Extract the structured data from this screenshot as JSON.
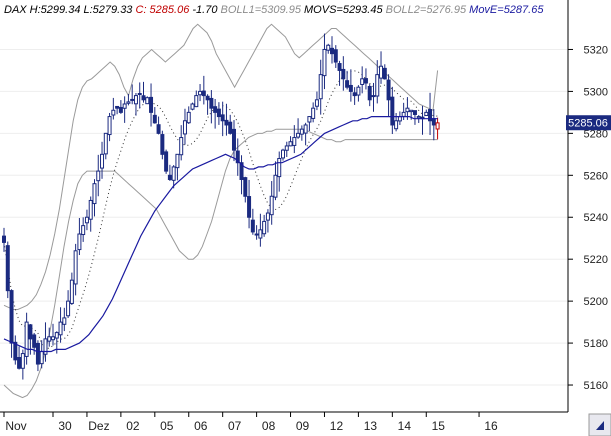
{
  "header": {
    "items": [
      {
        "text": "DAX H:5299.34 L:5279.33",
        "color": "#000000",
        "italic": true
      },
      {
        "text": "C: 5285.06",
        "color": "#c00000",
        "italic": true
      },
      {
        "text": "-1.70",
        "color": "#000000",
        "italic": true
      },
      {
        "text": "BOLL1=5309.95",
        "color": "#8c8c8c",
        "italic": true
      },
      {
        "text": "MOVS=5293.45",
        "color": "#000000",
        "italic": true
      },
      {
        "text": "BOLL2=5276.95",
        "color": "#8c8c8c",
        "italic": true
      },
      {
        "text": "MovE=5287.65",
        "color": "#1a1aa0",
        "italic": true
      }
    ]
  },
  "last_price_label": "5285.06",
  "colors": {
    "candle": "#1b2a80",
    "last_candle": "#c00000",
    "ema": "#1a1aa0",
    "boll": "#9a9a9a",
    "sma": "#333333",
    "price_tag_bg": "#1b2a80"
  },
  "chart_data": {
    "type": "candlestick",
    "y_ticks": [
      5160,
      5180,
      5200,
      5220,
      5240,
      5260,
      5280,
      5300,
      5320
    ],
    "ylim": [
      5150,
      5335
    ],
    "x_labels": [
      {
        "label": "Nov",
        "x": 0
      },
      {
        "label": "30",
        "x": 13
      },
      {
        "label": "Dez",
        "x": 22
      },
      {
        "label": "02",
        "x": 31
      },
      {
        "label": "05",
        "x": 40
      },
      {
        "label": "06",
        "x": 49
      },
      {
        "label": "07",
        "x": 58
      },
      {
        "label": "08",
        "x": 67
      },
      {
        "label": "09",
        "x": 76
      },
      {
        "label": "12",
        "x": 85
      },
      {
        "label": "13",
        "x": 94
      },
      {
        "label": "14",
        "x": 103
      },
      {
        "label": "15",
        "x": 112
      },
      {
        "label": "16",
        "x": 126
      }
    ],
    "x_range": [
      0,
      148
    ],
    "price": [
      5228,
      5205,
      5180,
      5172,
      5168,
      5175,
      5190,
      5182,
      5178,
      5170,
      5176,
      5182,
      5183,
      5183,
      5185,
      5190,
      5192,
      5200,
      5210,
      5224,
      5232,
      5236,
      5240,
      5248,
      5256,
      5262,
      5270,
      5280,
      5288,
      5291,
      5292,
      5290,
      5294,
      5295,
      5296,
      5298,
      5299,
      5296,
      5297,
      5290,
      5285,
      5280,
      5270,
      5262,
      5258,
      5264,
      5270,
      5278,
      5286,
      5290,
      5294,
      5298,
      5300,
      5298,
      5296,
      5292,
      5290,
      5288,
      5286,
      5284,
      5280,
      5272,
      5266,
      5258,
      5250,
      5240,
      5233,
      5232,
      5234,
      5238,
      5242,
      5250,
      5260,
      5268,
      5272,
      5274,
      5276,
      5278,
      5280,
      5282,
      5284,
      5288,
      5292,
      5296,
      5308,
      5320,
      5322,
      5318,
      5314,
      5310,
      5306,
      5302,
      5300,
      5298,
      5302,
      5306,
      5304,
      5296,
      5298,
      5308,
      5312,
      5306,
      5296,
      5284,
      5286,
      5288,
      5290,
      5292,
      5291,
      5289,
      5288,
      5287,
      5290,
      5286,
      5284,
      5285
    ],
    "ema_y": [
      5182,
      5181,
      5180,
      5179,
      5178,
      5177,
      5177,
      5176,
      5176,
      5176,
      5176,
      5177,
      5177,
      5177,
      5178,
      5179,
      5180,
      5182,
      5184,
      5187,
      5190,
      5193,
      5197,
      5201,
      5206,
      5211,
      5216,
      5221,
      5226,
      5231,
      5235,
      5239,
      5243,
      5246,
      5249,
      5252,
      5255,
      5257,
      5259,
      5261,
      5263,
      5264,
      5265,
      5266,
      5267,
      5268,
      5269,
      5270,
      5269,
      5268,
      5266,
      5264,
      5263,
      5263,
      5264,
      5264,
      5265,
      5265,
      5266,
      5266,
      5267,
      5268,
      5269,
      5270,
      5272,
      5274,
      5276,
      5278,
      5280,
      5281,
      5282,
      5283,
      5284,
      5285,
      5286,
      5286,
      5287,
      5287,
      5288,
      5288,
      5288,
      5288,
      5288,
      5288,
      5288,
      5288,
      5288,
      5287,
      5287,
      5287,
      5287,
      5287,
      5287
    ],
    "boll_upper": [
      5198,
      5197,
      5196,
      5196,
      5197,
      5198,
      5200,
      5203,
      5208,
      5214,
      5222,
      5232,
      5244,
      5258,
      5272,
      5286,
      5296,
      5302,
      5305,
      5306,
      5308,
      5310,
      5312,
      5314,
      5312,
      5308,
      5302,
      5298,
      5306,
      5312,
      5316,
      5318,
      5320,
      5318,
      5316,
      5314,
      5316,
      5318,
      5320,
      5322,
      5326,
      5330,
      5332,
      5330,
      5328,
      5324,
      5318,
      5314,
      5310,
      5306,
      5302,
      5306,
      5310,
      5314,
      5318,
      5322,
      5326,
      5330,
      5332,
      5330,
      5328,
      5326,
      5322,
      5318,
      5316,
      5318,
      5320,
      5322,
      5324,
      5326,
      5328,
      5330,
      5330,
      5328,
      5326,
      5324,
      5322,
      5320,
      5318,
      5316,
      5314,
      5312,
      5310,
      5308,
      5306,
      5304,
      5302,
      5300,
      5298,
      5296,
      5294,
      5293,
      5292,
      5291,
      5310
    ],
    "boll_lower": [
      5160,
      5158,
      5156,
      5155,
      5154,
      5155,
      5158,
      5162,
      5168,
      5176,
      5186,
      5198,
      5212,
      5226,
      5238,
      5248,
      5256,
      5260,
      5262,
      5262,
      5262,
      5262,
      5262,
      5262,
      5262,
      5260,
      5258,
      5256,
      5254,
      5252,
      5250,
      5248,
      5246,
      5244,
      5240,
      5236,
      5232,
      5228,
      5224,
      5222,
      5220,
      5220,
      5222,
      5226,
      5232,
      5238,
      5246,
      5254,
      5262,
      5268,
      5272,
      5274,
      5276,
      5278,
      5279,
      5280,
      5280,
      5281,
      5281,
      5282,
      5282,
      5282,
      5282,
      5282,
      5282,
      5282,
      5281,
      5280,
      5279,
      5278,
      5277,
      5277,
      5276,
      5276,
      5277,
      5277,
      5277,
      5277,
      5277,
      5277,
      5277,
      5277,
      5277,
      5277,
      5277,
      5277,
      5277,
      5277,
      5277,
      5277,
      5277,
      5277,
      5277,
      5277,
      5277
    ],
    "last_price": 5285.06
  }
}
